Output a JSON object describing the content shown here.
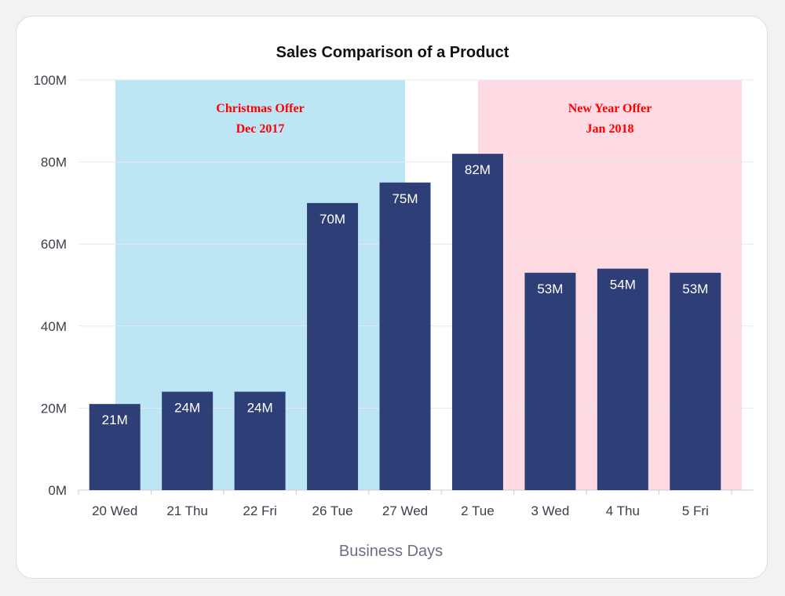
{
  "chart_data": {
    "type": "bar",
    "title": "Sales Comparison of a Product",
    "xlabel": "Business Days",
    "ylabel": "",
    "categories": [
      "20 Wed",
      "21 Thu",
      "22 Fri",
      "26 Tue",
      "27 Wed",
      "2 Tue",
      "3 Wed",
      "4 Thu",
      "5 Fri"
    ],
    "values": [
      21,
      24,
      24,
      70,
      75,
      82,
      53,
      54,
      53
    ],
    "value_labels": [
      "21M",
      "24M",
      "24M",
      "70M",
      "75M",
      "82M",
      "53M",
      "54M",
      "53M"
    ],
    "ylim": [
      0,
      100
    ],
    "y_ticks": [
      0,
      20,
      40,
      60,
      80,
      100
    ],
    "y_tick_labels": [
      "0M",
      "20M",
      "40M",
      "60M",
      "80M",
      "100M"
    ],
    "grid": "horizontal",
    "bar_color": "#2e3f78",
    "bands": [
      {
        "from_category": "21 Thu",
        "to_category": "27 Wed",
        "color": "#bde6f5",
        "label_lines": [
          "Christmas Offer",
          "Dec 2017"
        ]
      },
      {
        "from_category": "2 Tue",
        "to_category": "5 Fri",
        "color": "#fedbe2",
        "label_lines": [
          "New Year Offer",
          "Jan 2018"
        ]
      }
    ]
  }
}
